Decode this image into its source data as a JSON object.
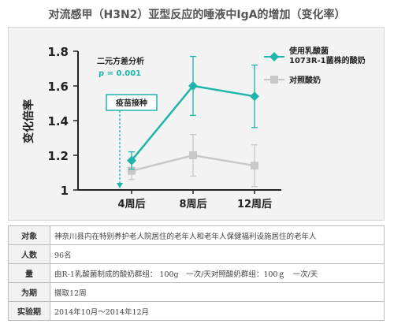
{
  "chart_data": {
    "type": "line",
    "title": "对流感甲（H3N2）亚型反应的唾液中IgA的增加（变化率）",
    "ylabel": "变化倍率",
    "categories": [
      "4周后",
      "8周后",
      "12周后"
    ],
    "ylim": [
      1,
      1.8
    ],
    "yticks": [
      "1.8",
      "1.6",
      "1.4",
      "1.2",
      "1"
    ],
    "series": [
      {
        "name": "使用乳酸菌1073R-1菌株的酸奶",
        "values": [
          1.17,
          1.6,
          1.54
        ],
        "err": [
          0.05,
          0.17,
          0.18
        ],
        "color": "#1fb5aa"
      },
      {
        "name": "对照酸奶",
        "values": [
          1.11,
          1.2,
          1.14
        ],
        "err": [
          0.05,
          0.12,
          0.12
        ],
        "color": "#c8c8c8"
      }
    ],
    "legend": "top-right",
    "annotations": {
      "stat_title": "二元方差分析",
      "stat_p": "p = 0.001",
      "vaccine": "疫苗接种"
    }
  },
  "table": [
    {
      "key": "对象",
      "value": "神奈川县内在特别养护老人院居住的老年人和老年人保健福利设施居住的老年人"
    },
    {
      "key": "人数",
      "value": "96名"
    },
    {
      "key": "量",
      "value": "由R-1乳酸菌制成的酸奶群组： 100g　一次/天对照酸奶群组：100ｇ　一次/天"
    },
    {
      "key": "为期",
      "value": "摄取12周"
    },
    {
      "key": "实验期",
      "value": "2014年10月～2014年12月"
    }
  ]
}
